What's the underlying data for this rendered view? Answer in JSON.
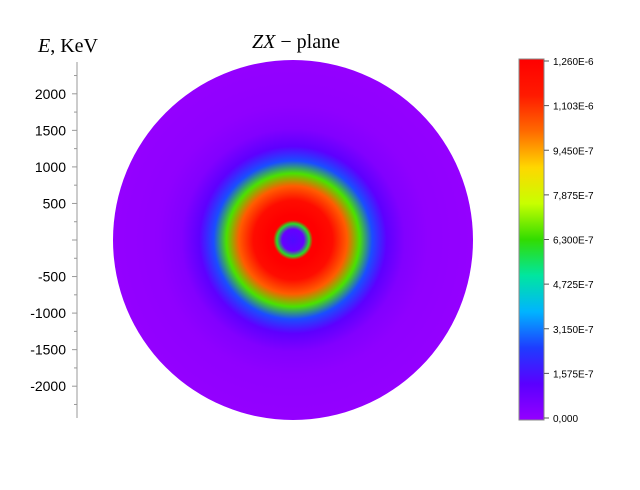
{
  "chart_data": {
    "type": "heatmap",
    "title": "ZX − plane",
    "title_italic_part": "ZX",
    "title_rest": " − plane",
    "ylabel": "E, KeV",
    "ylabel_italic_part": "E",
    "ylabel_rest": ", KeV",
    "yticks": [
      2000,
      1500,
      1000,
      500,
      -500,
      -1000,
      -1500,
      -2000
    ],
    "ytick_labels": [
      "2000",
      "1500",
      "1000",
      "500",
      "-500",
      "-1000",
      "-1500",
      "-2000"
    ],
    "colorbar": {
      "min": 0,
      "max": 1.26e-06,
      "tick_labels": [
        "1,260E-6",
        "1,103E-6",
        "9,450E-7",
        "7,875E-7",
        "6,300E-7",
        "4,725E-7",
        "3,150E-7",
        "1,575E-7",
        "0,000"
      ],
      "colors": [
        "#9400ff",
        "#5a00ff",
        "#1e3cff",
        "#00b4ff",
        "#00e6a0",
        "#32dc00",
        "#c8ff00",
        "#ffd700",
        "#ff6a00",
        "#ff1a00",
        "#ff0000"
      ]
    },
    "radial_profile": {
      "r_norm": [
        0.0,
        0.06,
        0.09,
        0.11,
        0.14,
        0.22,
        0.3,
        0.37,
        0.44,
        0.52,
        0.62,
        0.75,
        1.0
      ],
      "value": [
        1.5e-07,
        1e-07,
        6e-07,
        1.26e-06,
        1.26e-06,
        1.2e-06,
        1.03e-06,
        6.5e-07,
        2.7e-07,
        1.2e-07,
        4e-08,
        1e-08,
        0.0
      ]
    }
  }
}
